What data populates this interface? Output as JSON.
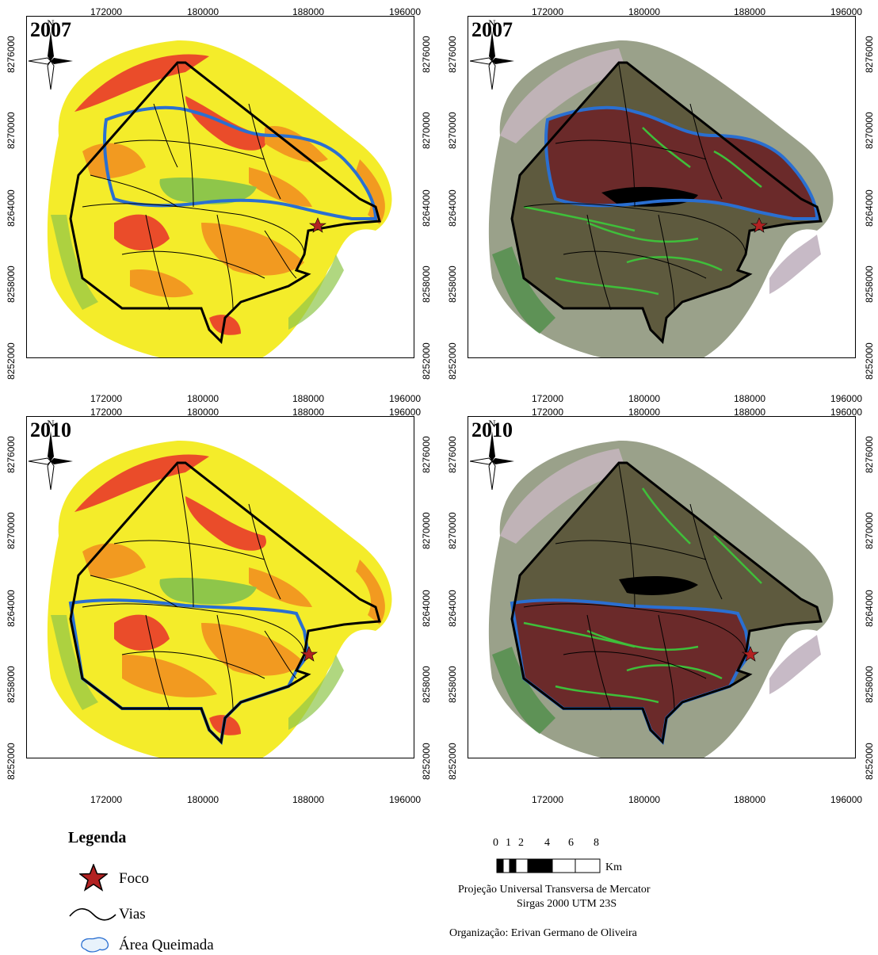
{
  "panels": [
    {
      "year": "2007",
      "style": "classified",
      "burned": "north"
    },
    {
      "year": "2007",
      "style": "satellite",
      "burned": "north"
    },
    {
      "year": "2010",
      "style": "classified",
      "burned": "south"
    },
    {
      "year": "2010",
      "style": "satellite",
      "burned": "south"
    }
  ],
  "axis": {
    "x_ticks": [
      "172000",
      "180000",
      "188000",
      "196000"
    ],
    "y_ticks": [
      "8276000",
      "8270000",
      "8264000",
      "8258000",
      "8252000"
    ]
  },
  "north_label": "N",
  "legend": {
    "title": "Legenda",
    "foco": "Foco",
    "vias": "Vias",
    "area": "Área Queimada"
  },
  "scale": {
    "numbers": [
      "0",
      "1",
      "2",
      "4",
      "6",
      "8"
    ],
    "unit": "Km",
    "projection": "Projeção Universal Transversa de Mercator",
    "datum": "Sirgas 2000 UTM 23S",
    "author": "Organização: Erivan Germano de Oliveira"
  },
  "colors": {
    "class_yellow": "#f4ec2a",
    "class_orange": "#f29a20",
    "class_red": "#e8302a",
    "class_green": "#8ec64a",
    "sat_brown": "#5e5a3e",
    "sat_burn": "#6b2a2a",
    "sat_green": "#3fbf3a",
    "burn_outline": "#2a6fd1",
    "star": "#b22222"
  }
}
